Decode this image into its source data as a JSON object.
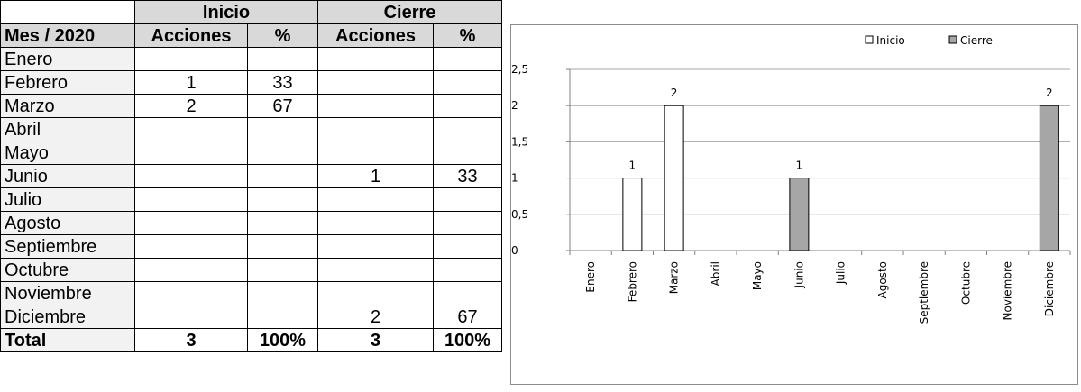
{
  "table": {
    "group_headers": {
      "inicio": "Inicio",
      "cierre": "Cierre"
    },
    "column_headers": {
      "month": "Mes / 2020",
      "acciones_inicio": "Acciones",
      "pct_inicio": "%",
      "acciones_cierre": "Acciones",
      "pct_cierre": "%"
    },
    "rows": [
      {
        "month": "Enero",
        "inicio_acciones": "",
        "inicio_pct": "",
        "cierre_acciones": "",
        "cierre_pct": ""
      },
      {
        "month": "Febrero",
        "inicio_acciones": "1",
        "inicio_pct": "33",
        "cierre_acciones": "",
        "cierre_pct": ""
      },
      {
        "month": "Marzo",
        "inicio_acciones": "2",
        "inicio_pct": "67",
        "cierre_acciones": "",
        "cierre_pct": ""
      },
      {
        "month": "Abril",
        "inicio_acciones": "",
        "inicio_pct": "",
        "cierre_acciones": "",
        "cierre_pct": ""
      },
      {
        "month": "Mayo",
        "inicio_acciones": "",
        "inicio_pct": "",
        "cierre_acciones": "",
        "cierre_pct": ""
      },
      {
        "month": "Junio",
        "inicio_acciones": "",
        "inicio_pct": "",
        "cierre_acciones": "1",
        "cierre_pct": "33"
      },
      {
        "month": "Julio",
        "inicio_acciones": "",
        "inicio_pct": "",
        "cierre_acciones": "",
        "cierre_pct": ""
      },
      {
        "month": "Agosto",
        "inicio_acciones": "",
        "inicio_pct": "",
        "cierre_acciones": "",
        "cierre_pct": ""
      },
      {
        "month": "Septiembre",
        "inicio_acciones": "",
        "inicio_pct": "",
        "cierre_acciones": "",
        "cierre_pct": ""
      },
      {
        "month": "Octubre",
        "inicio_acciones": "",
        "inicio_pct": "",
        "cierre_acciones": "",
        "cierre_pct": ""
      },
      {
        "month": "Noviembre",
        "inicio_acciones": "",
        "inicio_pct": "",
        "cierre_acciones": "",
        "cierre_pct": ""
      },
      {
        "month": "Diciembre",
        "inicio_acciones": "",
        "inicio_pct": "",
        "cierre_acciones": "2",
        "cierre_pct": "67"
      }
    ],
    "total": {
      "label": "Total",
      "inicio_acciones": "3",
      "inicio_pct": "100%",
      "cierre_acciones": "3",
      "cierre_pct": "100%"
    }
  },
  "colors": {
    "header_fill": "#d9d9d9",
    "month_fill": "#f2f2f2",
    "inicio_bar": "#ffffff",
    "cierre_bar": "#a6a6a6",
    "gridline": "#a6a6a6"
  },
  "chart_data": {
    "type": "bar",
    "categories": [
      "Enero",
      "Febrero",
      "Marzo",
      "Abril",
      "Mayo",
      "Junio",
      "Julio",
      "Agosto",
      "Septiembre",
      "Octubre",
      "Noviembre",
      "Diciembre"
    ],
    "series": [
      {
        "name": "Inicio",
        "values": [
          0,
          1,
          2,
          0,
          0,
          0,
          0,
          0,
          0,
          0,
          0,
          0
        ],
        "color": "#ffffff"
      },
      {
        "name": "Cierre",
        "values": [
          0,
          0,
          0,
          0,
          0,
          1,
          0,
          0,
          0,
          0,
          0,
          2
        ],
        "color": "#a6a6a6"
      }
    ],
    "data_labels": {
      "Inicio": [
        "",
        "1",
        "2",
        "",
        "",
        "",
        "",
        "",
        "",
        "",
        "",
        ""
      ],
      "Cierre": [
        "",
        "",
        "",
        "",
        "",
        "1",
        "",
        "",
        "",
        "",
        "",
        "2"
      ]
    },
    "yticks": [
      "0",
      "0,5",
      "1",
      "1,5",
      "2",
      "2,5"
    ],
    "ylim": [
      0,
      2.5
    ],
    "ytick_step": 0.5,
    "grid": true,
    "legend": "top-right",
    "title": "",
    "xlabel": "",
    "ylabel": ""
  }
}
